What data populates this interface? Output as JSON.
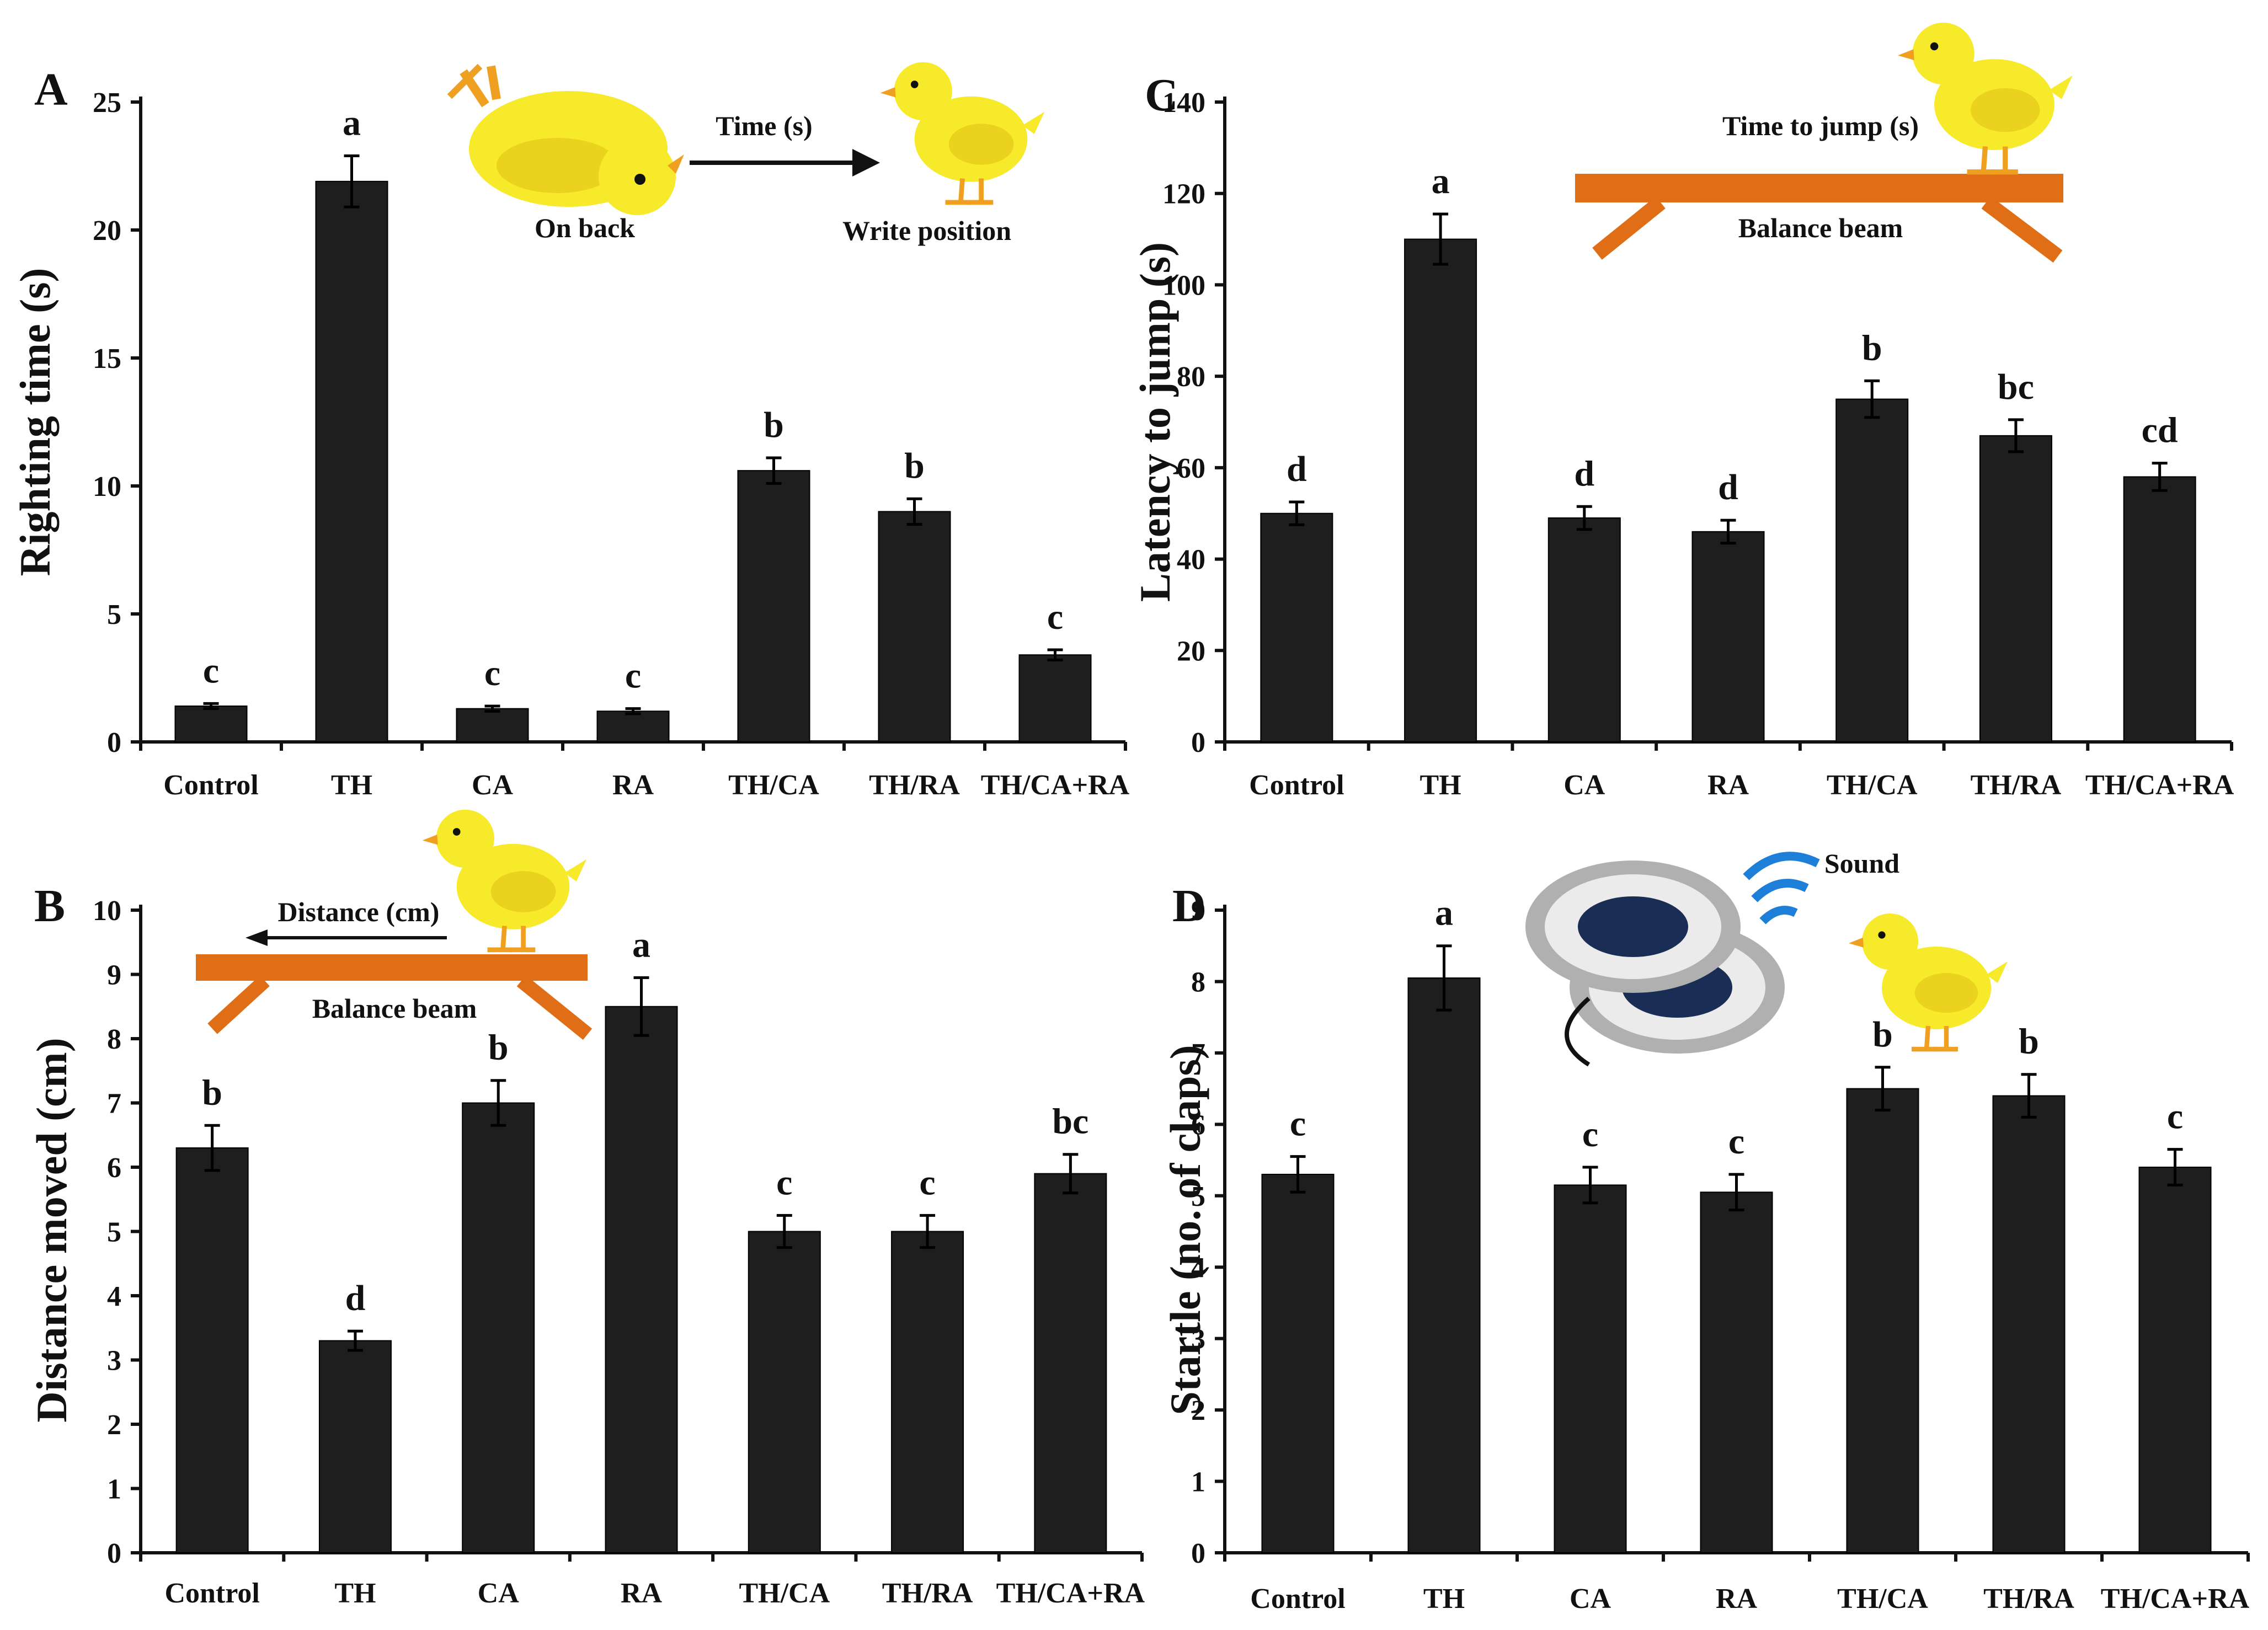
{
  "chart_data": [
    {
      "panel": "A",
      "type": "bar",
      "title": "",
      "xlabel": "",
      "ylabel": "Righting time (s)",
      "ylim": [
        0,
        25
      ],
      "yticks": [
        0,
        5,
        10,
        15,
        20,
        25
      ],
      "categories": [
        "Control",
        "TH",
        "CA",
        "RA",
        "TH/CA",
        "TH/RA",
        "TH/CA+RA"
      ],
      "values": [
        1.4,
        21.9,
        1.3,
        1.2,
        10.6,
        9.0,
        3.4
      ],
      "errors": [
        0.1,
        1.0,
        0.1,
        0.1,
        0.5,
        0.5,
        0.2
      ],
      "letters": [
        "c",
        "a",
        "c",
        "c",
        "b",
        "b",
        "c"
      ],
      "annotations": {
        "left_label": "On back",
        "arrow_label": "Time (s)",
        "right_label": "Write position"
      }
    },
    {
      "panel": "B",
      "type": "bar",
      "title": "",
      "xlabel": "",
      "ylabel": "Distance moved (cm)",
      "ylim": [
        0,
        10
      ],
      "yticks": [
        0,
        1,
        2,
        3,
        4,
        5,
        6,
        7,
        8,
        9,
        10
      ],
      "categories": [
        "Control",
        "TH",
        "CA",
        "RA",
        "TH/CA",
        "TH/RA",
        "TH/CA+RA"
      ],
      "values": [
        6.3,
        3.3,
        7.0,
        8.5,
        5.0,
        5.0,
        5.9
      ],
      "errors": [
        0.35,
        0.15,
        0.35,
        0.45,
        0.25,
        0.25,
        0.3
      ],
      "letters": [
        "b",
        "d",
        "b",
        "a",
        "c",
        "c",
        "bc"
      ],
      "annotations": {
        "arrow_label": "Distance (cm)",
        "beam_label": "Balance beam"
      }
    },
    {
      "panel": "C",
      "type": "bar",
      "title": "",
      "xlabel": "",
      "ylabel": "Latency to jump (s)",
      "ylim": [
        0,
        140
      ],
      "yticks": [
        0,
        20,
        40,
        60,
        80,
        100,
        120,
        140
      ],
      "categories": [
        "Control",
        "TH",
        "CA",
        "RA",
        "TH/CA",
        "TH/RA",
        "TH/CA+RA"
      ],
      "values": [
        50,
        110,
        49,
        46,
        75,
        67,
        58
      ],
      "errors": [
        2.5,
        5.5,
        2.5,
        2.5,
        4,
        3.5,
        3
      ],
      "letters": [
        "d",
        "a",
        "d",
        "d",
        "b",
        "bc",
        "cd"
      ],
      "annotations": {
        "top_label": "Time to jump (s)",
        "beam_label": "Balance beam"
      }
    },
    {
      "panel": "D",
      "type": "bar",
      "title": "",
      "xlabel": "",
      "ylabel": "Startle (no. of claps)",
      "ylim": [
        0,
        9
      ],
      "yticks": [
        0,
        1,
        2,
        3,
        4,
        5,
        6,
        7,
        8,
        9
      ],
      "categories": [
        "Control",
        "TH",
        "CA",
        "RA",
        "TH/CA",
        "TH/RA",
        "TH/CA+RA"
      ],
      "values": [
        5.3,
        8.05,
        5.15,
        5.05,
        6.5,
        6.4,
        5.4
      ],
      "errors": [
        0.25,
        0.45,
        0.25,
        0.25,
        0.3,
        0.3,
        0.25
      ],
      "letters": [
        "c",
        "a",
        "c",
        "c",
        "b",
        "b",
        "c"
      ],
      "annotations": {
        "sound_label": "Sound"
      }
    }
  ],
  "colors": {
    "bar": "#1e1e1e",
    "chick": "#f6ea2a",
    "chick_shade": "#e9cc1c",
    "beam": "#e06e16",
    "feet": "#f0a020",
    "sound": "#1e7fd8"
  }
}
